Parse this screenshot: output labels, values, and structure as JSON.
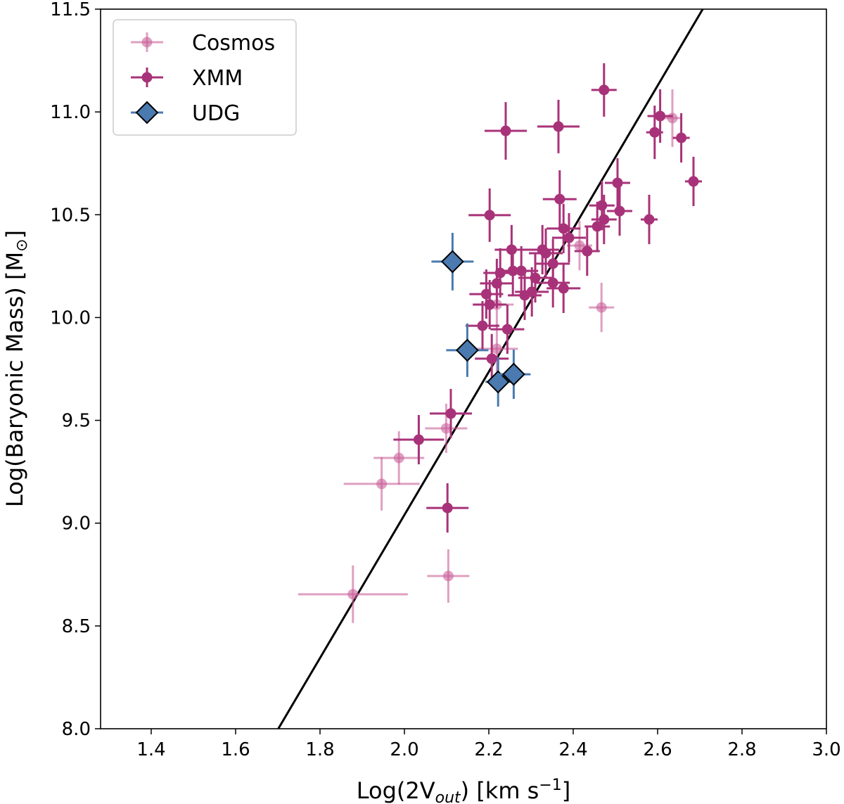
{
  "chart_data": {
    "type": "scatter",
    "xlabel": {
      "pre": "Log(2V",
      "sub": "out",
      "post": ") [km s",
      "sup": "−1",
      "end": "]"
    },
    "ylabel": {
      "pre": "Log(Baryonic Mass) [M",
      "sub": "⊙",
      "end": "]"
    },
    "xlim": [
      1.28,
      3.0
    ],
    "ylim": [
      8.0,
      11.5
    ],
    "xticks": [
      "1.4",
      "1.6",
      "1.8",
      "2.0",
      "2.2",
      "2.4",
      "2.6",
      "2.8",
      "3.0"
    ],
    "yticks": [
      "8.0",
      "8.5",
      "9.0",
      "9.5",
      "10.0",
      "10.5",
      "11.0",
      "11.5"
    ],
    "grid": false,
    "legend_position": "top-left",
    "fit_line": {
      "slope": 3.48,
      "intercept": 2.08,
      "color": "#000000"
    },
    "series": [
      {
        "name": "Cosmos",
        "color": "#c9609a",
        "alpha": 0.6,
        "marker": "circle",
        "points": [
          [
            1.878,
            8.654,
            0.13,
            0.14
          ],
          [
            1.946,
            9.191,
            0.09,
            0.13
          ],
          [
            1.987,
            9.317,
            0.06,
            0.13
          ],
          [
            2.104,
            8.743,
            0.05,
            0.13
          ],
          [
            2.099,
            9.461,
            0.05,
            0.12
          ],
          [
            2.467,
            10.049,
            0.03,
            0.12
          ],
          [
            2.635,
            10.97,
            0.02,
            0.14
          ],
          [
            2.219,
            9.848,
            0.05,
            0.12
          ],
          [
            2.219,
            10.063,
            0.04,
            0.12
          ],
          [
            2.415,
            10.35,
            0.03,
            0.12
          ]
        ]
      },
      {
        "name": "XMM",
        "color": "#a83279",
        "alpha": 1,
        "marker": "circle",
        "points": [
          [
            2.473,
            11.107,
            0.03,
            0.13
          ],
          [
            2.24,
            10.908,
            0.05,
            0.14
          ],
          [
            2.365,
            10.929,
            0.05,
            0.13
          ],
          [
            2.606,
            10.98,
            0.03,
            0.13
          ],
          [
            2.593,
            10.901,
            0.02,
            0.13
          ],
          [
            2.656,
            10.874,
            0.02,
            0.12
          ],
          [
            2.685,
            10.662,
            0.02,
            0.12
          ],
          [
            2.505,
            10.655,
            0.03,
            0.12
          ],
          [
            2.202,
            10.498,
            0.05,
            0.13
          ],
          [
            2.58,
            10.477,
            0.02,
            0.12
          ],
          [
            2.51,
            10.518,
            0.03,
            0.12
          ],
          [
            2.368,
            10.576,
            0.04,
            0.14
          ],
          [
            2.468,
            10.545,
            0.03,
            0.12
          ],
          [
            2.473,
            10.477,
            0.03,
            0.12
          ],
          [
            2.457,
            10.443,
            0.03,
            0.12
          ],
          [
            2.377,
            10.433,
            0.04,
            0.12
          ],
          [
            2.39,
            10.388,
            0.04,
            0.12
          ],
          [
            2.327,
            10.33,
            0.04,
            0.12
          ],
          [
            2.433,
            10.323,
            0.03,
            0.12
          ],
          [
            2.254,
            10.33,
            0.04,
            0.12
          ],
          [
            2.257,
            10.227,
            0.04,
            0.12
          ],
          [
            2.335,
            10.313,
            0.04,
            0.12
          ],
          [
            2.352,
            10.262,
            0.04,
            0.12
          ],
          [
            2.227,
            10.217,
            0.04,
            0.12
          ],
          [
            2.277,
            10.227,
            0.04,
            0.12
          ],
          [
            2.31,
            10.193,
            0.04,
            0.12
          ],
          [
            2.352,
            10.169,
            0.04,
            0.12
          ],
          [
            2.219,
            10.166,
            0.04,
            0.12
          ],
          [
            2.194,
            10.114,
            0.04,
            0.12
          ],
          [
            2.285,
            10.108,
            0.04,
            0.12
          ],
          [
            2.202,
            10.063,
            0.04,
            0.12
          ],
          [
            2.244,
            9.943,
            0.04,
            0.12
          ],
          [
            2.185,
            9.96,
            0.04,
            0.12
          ],
          [
            2.207,
            9.8,
            0.04,
            0.12
          ],
          [
            2.11,
            9.533,
            0.05,
            0.12
          ],
          [
            2.034,
            9.406,
            0.06,
            0.12
          ],
          [
            2.102,
            9.074,
            0.05,
            0.12
          ],
          [
            2.302,
            10.125,
            0.04,
            0.12
          ],
          [
            2.377,
            10.142,
            0.04,
            0.12
          ]
        ]
      },
      {
        "name": "UDG",
        "color": "#4a7ab0",
        "alpha": 1,
        "marker": "diamond",
        "points": [
          [
            2.114,
            10.272,
            0.05,
            0.14
          ],
          [
            2.149,
            9.841,
            0.05,
            0.13
          ],
          [
            2.222,
            9.687,
            0.03,
            0.12
          ],
          [
            2.259,
            9.724,
            0.04,
            0.12
          ]
        ]
      }
    ]
  }
}
